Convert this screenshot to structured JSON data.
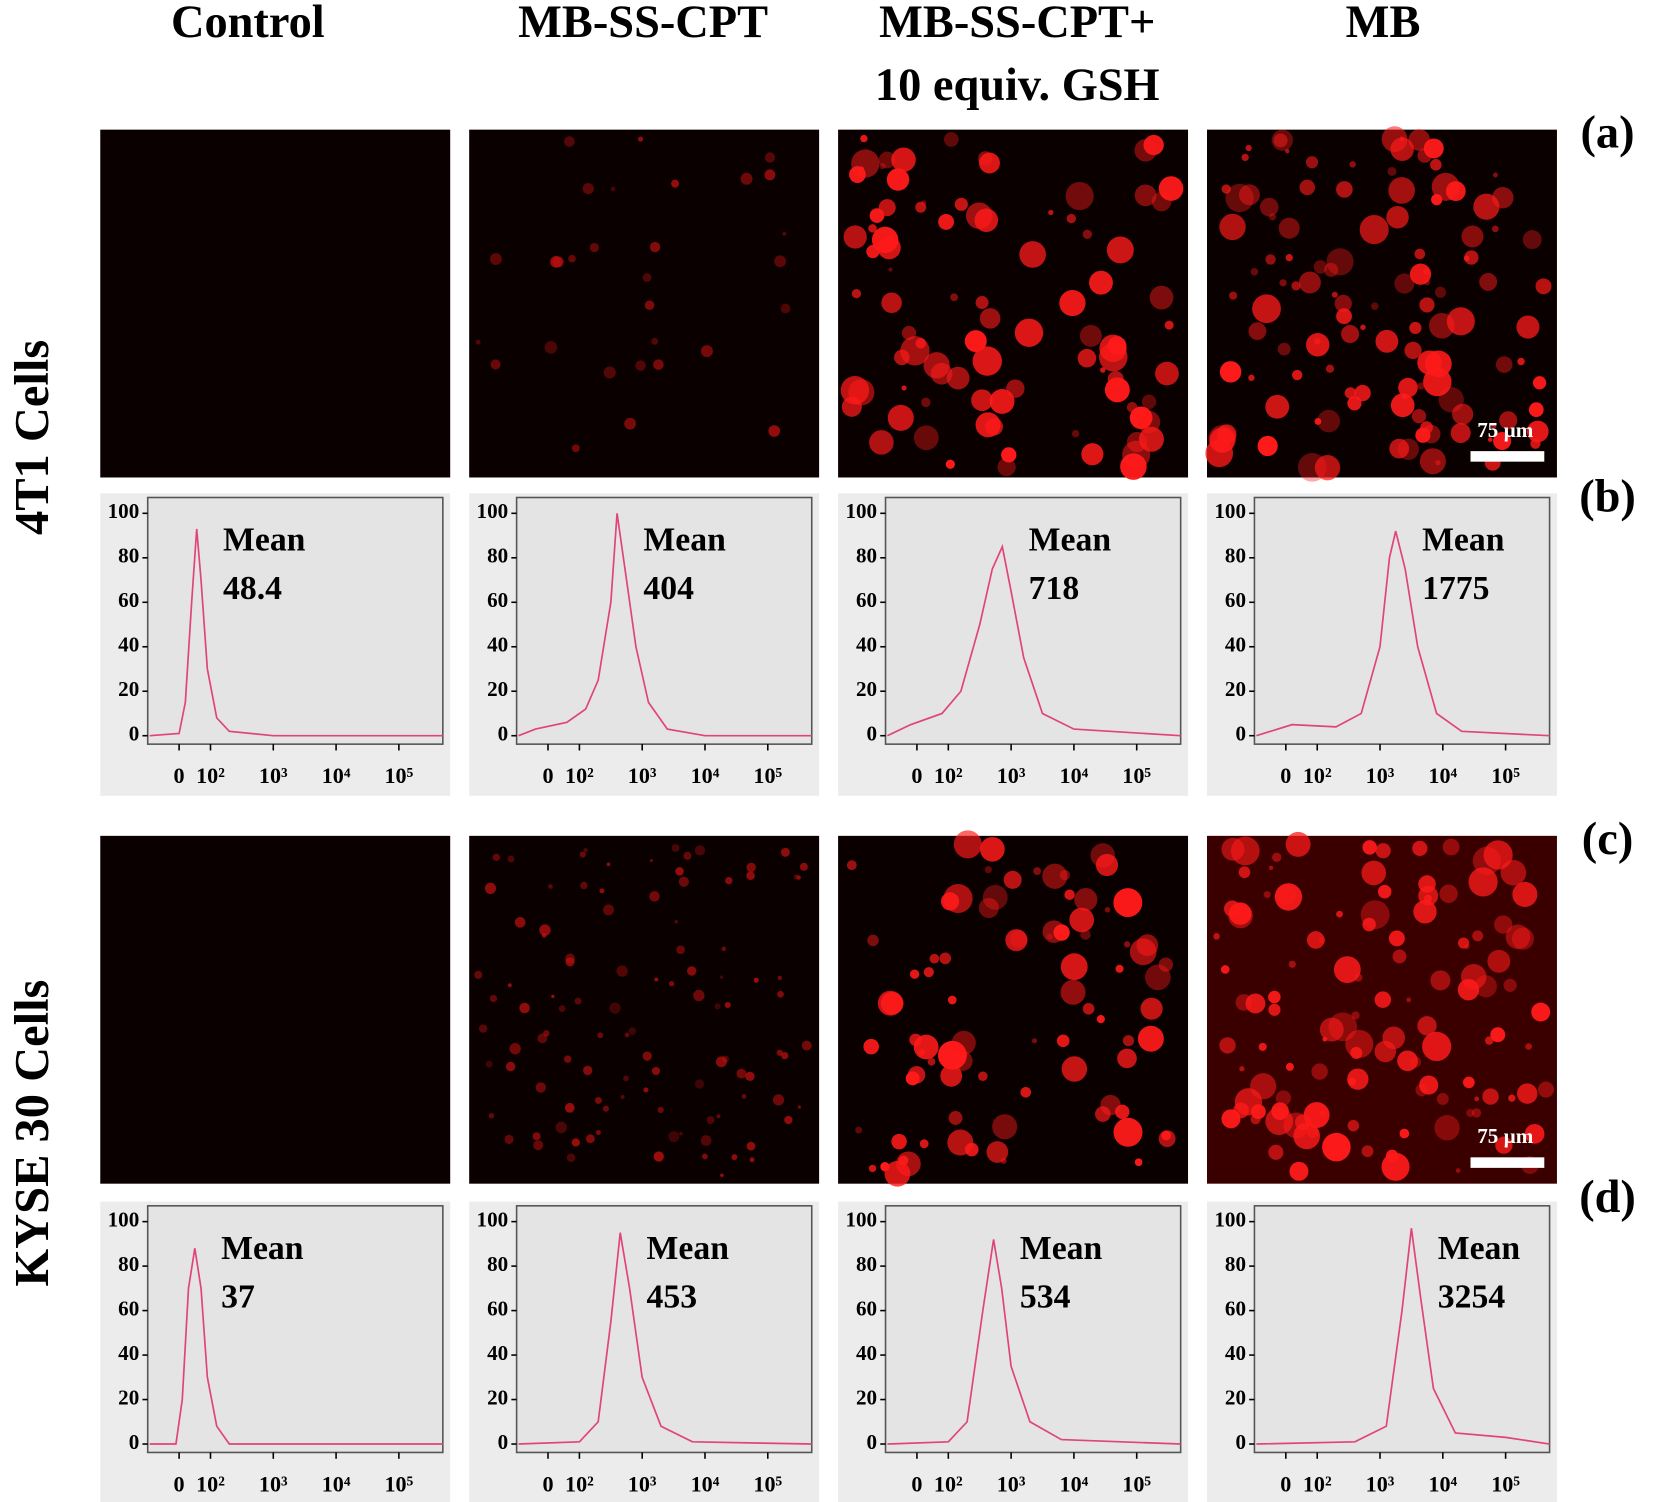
{
  "column_headers": [
    [
      "Control"
    ],
    [
      "MB-SS-CPT"
    ],
    [
      "MB-SS-CPT+",
      "10 equiv. GSH"
    ],
    [
      "MB"
    ]
  ],
  "row_labels": [
    "4T1 Cells",
    "KYSE 30 Cells"
  ],
  "panel_labels": [
    "(a)",
    "(b)",
    "(c)",
    "(d)"
  ],
  "scale_bar_label": "75 µm",
  "chart_data": [
    {
      "type": "line",
      "color": "#e0447a",
      "annotation": "Mean",
      "mean": 48.4,
      "x": [
        1.03,
        1.5,
        1.6,
        1.7,
        1.78,
        1.85,
        1.95,
        2.1,
        2.3,
        3,
        4,
        5.7
      ],
      "values": [
        0,
        1,
        15,
        60,
        93,
        70,
        30,
        8,
        2,
        0,
        0,
        0
      ],
      "xlim": [
        1,
        5.7
      ],
      "ylim": [
        0,
        100
      ],
      "yticks": [
        0,
        20,
        40,
        60,
        80,
        100
      ],
      "xticks": [
        {
          "value": 1.5,
          "label": "0"
        },
        {
          "value": 2,
          "label": "10²"
        },
        {
          "value": 3,
          "label": "10³"
        },
        {
          "value": 4,
          "label": "10⁴"
        },
        {
          "value": 5,
          "label": "10⁵"
        }
      ]
    },
    {
      "type": "line",
      "color": "#e0447a",
      "annotation": "Mean",
      "mean": 404,
      "x": [
        1.03,
        1.3,
        1.8,
        2.1,
        2.3,
        2.5,
        2.6,
        2.75,
        2.9,
        3.1,
        3.4,
        4,
        5.7
      ],
      "values": [
        0,
        3,
        6,
        12,
        25,
        60,
        100,
        70,
        40,
        15,
        3,
        0,
        0
      ],
      "xlim": [
        1,
        5.7
      ],
      "ylim": [
        0,
        100
      ],
      "yticks": [
        0,
        20,
        40,
        60,
        80,
        100
      ],
      "xticks": [
        {
          "value": 1.5,
          "label": "0"
        },
        {
          "value": 2,
          "label": "10²"
        },
        {
          "value": 3,
          "label": "10³"
        },
        {
          "value": 4,
          "label": "10⁴"
        },
        {
          "value": 5,
          "label": "10⁵"
        }
      ]
    },
    {
      "type": "line",
      "color": "#e0447a",
      "annotation": "Mean",
      "mean": 718,
      "x": [
        1.03,
        1.4,
        1.9,
        2.2,
        2.5,
        2.7,
        2.86,
        3.0,
        3.2,
        3.5,
        4,
        5.7
      ],
      "values": [
        0,
        5,
        10,
        20,
        50,
        75,
        85,
        65,
        35,
        10,
        3,
        0
      ],
      "xlim": [
        1,
        5.7
      ],
      "ylim": [
        0,
        100
      ],
      "yticks": [
        0,
        20,
        40,
        60,
        80,
        100
      ],
      "xticks": [
        {
          "value": 1.5,
          "label": "0"
        },
        {
          "value": 2,
          "label": "10²"
        },
        {
          "value": 3,
          "label": "10³"
        },
        {
          "value": 4,
          "label": "10⁴"
        },
        {
          "value": 5,
          "label": "10⁵"
        }
      ]
    },
    {
      "type": "line",
      "color": "#e0447a",
      "annotation": "Mean",
      "mean": 1775,
      "x": [
        1.03,
        1.6,
        2.3,
        2.7,
        3.0,
        3.15,
        3.25,
        3.4,
        3.6,
        3.9,
        4.3,
        5.7
      ],
      "values": [
        0,
        5,
        4,
        10,
        40,
        80,
        92,
        75,
        40,
        10,
        2,
        0
      ],
      "xlim": [
        1,
        5.7
      ],
      "ylim": [
        0,
        100
      ],
      "yticks": [
        0,
        20,
        40,
        60,
        80,
        100
      ],
      "xticks": [
        {
          "value": 1.5,
          "label": "0"
        },
        {
          "value": 2,
          "label": "10²"
        },
        {
          "value": 3,
          "label": "10³"
        },
        {
          "value": 4,
          "label": "10⁴"
        },
        {
          "value": 5,
          "label": "10⁵"
        }
      ]
    },
    {
      "type": "line",
      "color": "#e0447a",
      "annotation": "Mean",
      "mean": 37,
      "x": [
        1.03,
        1.45,
        1.55,
        1.65,
        1.75,
        1.85,
        1.95,
        2.1,
        2.3,
        5.7
      ],
      "values": [
        0,
        0,
        20,
        70,
        88,
        70,
        30,
        8,
        0,
        0
      ],
      "xlim": [
        1,
        5.7
      ],
      "ylim": [
        0,
        100
      ],
      "yticks": [
        0,
        20,
        40,
        60,
        80,
        100
      ],
      "xticks": [
        {
          "value": 1.5,
          "label": "0"
        },
        {
          "value": 2,
          "label": "10²"
        },
        {
          "value": 3,
          "label": "10³"
        },
        {
          "value": 4,
          "label": "10⁴"
        },
        {
          "value": 5,
          "label": "10⁵"
        }
      ]
    },
    {
      "type": "line",
      "color": "#e0447a",
      "annotation": "Mean",
      "mean": 453,
      "x": [
        1.03,
        2,
        2.3,
        2.5,
        2.65,
        2.8,
        3.0,
        3.3,
        3.8,
        5.7
      ],
      "values": [
        0,
        1,
        10,
        55,
        95,
        70,
        30,
        8,
        1,
        0
      ],
      "xlim": [
        1,
        5.7
      ],
      "ylim": [
        0,
        100
      ],
      "yticks": [
        0,
        20,
        40,
        60,
        80,
        100
      ],
      "xticks": [
        {
          "value": 1.5,
          "label": "0"
        },
        {
          "value": 2,
          "label": "10²"
        },
        {
          "value": 3,
          "label": "10³"
        },
        {
          "value": 4,
          "label": "10⁴"
        },
        {
          "value": 5,
          "label": "10⁵"
        }
      ]
    },
    {
      "type": "line",
      "color": "#e0447a",
      "annotation": "Mean",
      "mean": 534,
      "x": [
        1.03,
        2,
        2.3,
        2.55,
        2.72,
        2.85,
        3.0,
        3.3,
        3.8,
        5.7
      ],
      "values": [
        0,
        1,
        10,
        60,
        92,
        70,
        35,
        10,
        2,
        0
      ],
      "xlim": [
        1,
        5.7
      ],
      "ylim": [
        0,
        100
      ],
      "yticks": [
        0,
        20,
        40,
        60,
        80,
        100
      ],
      "xticks": [
        {
          "value": 1.5,
          "label": "0"
        },
        {
          "value": 2,
          "label": "10²"
        },
        {
          "value": 3,
          "label": "10³"
        },
        {
          "value": 4,
          "label": "10⁴"
        },
        {
          "value": 5,
          "label": "10⁵"
        }
      ]
    },
    {
      "type": "line",
      "color": "#e0447a",
      "annotation": "Mean",
      "mean": 3254,
      "x": [
        1.03,
        2.6,
        3.1,
        3.35,
        3.5,
        3.65,
        3.85,
        4.2,
        5.0,
        5.7
      ],
      "values": [
        0,
        1,
        8,
        60,
        97,
        65,
        25,
        5,
        3,
        0
      ],
      "xlim": [
        1,
        5.7
      ],
      "ylim": [
        0,
        100
      ],
      "yticks": [
        0,
        20,
        40,
        60,
        80,
        100
      ],
      "xticks": [
        {
          "value": 1.5,
          "label": "0"
        },
        {
          "value": 2,
          "label": "10²"
        },
        {
          "value": 3,
          "label": "10³"
        },
        {
          "value": 4,
          "label": "10⁴"
        },
        {
          "value": 5,
          "label": "10⁵"
        }
      ]
    }
  ]
}
